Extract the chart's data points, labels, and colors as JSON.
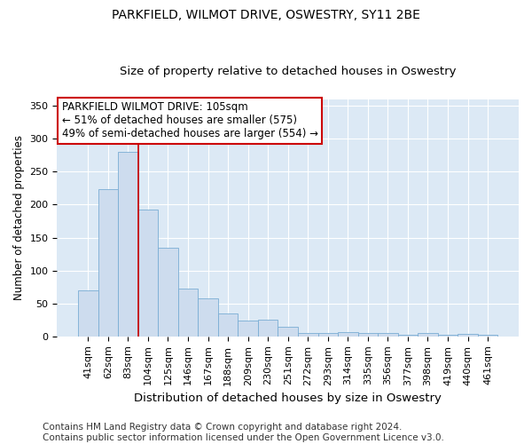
{
  "title": "PARKFIELD, WILMOT DRIVE, OSWESTRY, SY11 2BE",
  "subtitle": "Size of property relative to detached houses in Oswestry",
  "xlabel": "Distribution of detached houses by size in Oswestry",
  "ylabel": "Number of detached properties",
  "bar_color": "#cddcee",
  "bar_edge_color": "#7aadd4",
  "background_color": "#dce9f5",
  "grid_color": "#ffffff",
  "categories": [
    "41sqm",
    "62sqm",
    "83sqm",
    "104sqm",
    "125sqm",
    "146sqm",
    "167sqm",
    "188sqm",
    "209sqm",
    "230sqm",
    "251sqm",
    "272sqm",
    "293sqm",
    "314sqm",
    "335sqm",
    "356sqm",
    "377sqm",
    "398sqm",
    "419sqm",
    "440sqm",
    "461sqm"
  ],
  "values": [
    70,
    223,
    280,
    193,
    135,
    73,
    58,
    35,
    24,
    25,
    15,
    5,
    5,
    7,
    5,
    5,
    3,
    5,
    2,
    4,
    2
  ],
  "ylim": [
    0,
    360
  ],
  "yticks": [
    0,
    50,
    100,
    150,
    200,
    250,
    300,
    350
  ],
  "annotation_text": "PARKFIELD WILMOT DRIVE: 105sqm\n← 51% of detached houses are smaller (575)\n49% of semi-detached houses are larger (554) →",
  "vline_x": 3.5,
  "vline_color": "#cc0000",
  "annotation_box_color": "#ffffff",
  "annotation_box_edge": "#cc0000",
  "footer_text": "Contains HM Land Registry data © Crown copyright and database right 2024.\nContains public sector information licensed under the Open Government Licence v3.0.",
  "title_fontsize": 10,
  "subtitle_fontsize": 9.5,
  "xlabel_fontsize": 9.5,
  "ylabel_fontsize": 8.5,
  "tick_fontsize": 8,
  "annotation_fontsize": 8.5,
  "footer_fontsize": 7.5
}
